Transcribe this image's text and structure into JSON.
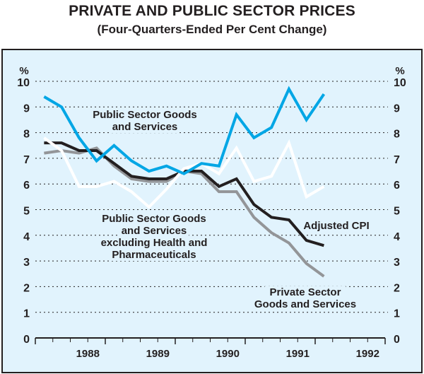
{
  "chart_data": {
    "type": "line",
    "title": "PRIVATE AND PUBLIC SECTOR PRICES",
    "subtitle": "(Four-Quarters-Ended Per Cent Change)",
    "xlabel": "",
    "ylabel": "%",
    "ylabel_right": "%",
    "ylim": [
      0,
      10
    ],
    "yticks": [
      0,
      1,
      2,
      3,
      4,
      5,
      6,
      7,
      8,
      9,
      10
    ],
    "x_tick_labels": [
      "1988",
      "1989",
      "1990",
      "1991",
      "1992"
    ],
    "x_start": "1987 Q4",
    "x_quarters_total": 20,
    "grid": true,
    "x": [
      "1988 Q1",
      "1988 Q2",
      "1988 Q3",
      "1988 Q4",
      "1989 Q1",
      "1989 Q2",
      "1989 Q3",
      "1989 Q4",
      "1990 Q1",
      "1990 Q2",
      "1990 Q3",
      "1990 Q4",
      "1991 Q1",
      "1991 Q2",
      "1991 Q3",
      "1991 Q4",
      "1992 Q1"
    ],
    "series": [
      {
        "name": "Public Sector Goods and Services",
        "label_lines": [
          "Public Sector Goods",
          "and Services"
        ],
        "color": "#00a6e5",
        "values": [
          9.4,
          9.0,
          7.8,
          6.9,
          7.5,
          6.9,
          6.5,
          6.7,
          6.4,
          6.8,
          6.7,
          8.7,
          7.8,
          8.2,
          9.7,
          8.5,
          9.5
        ]
      },
      {
        "name": "Public Sector Goods and Services excluding Health and Pharmaceuticals",
        "label_lines": [
          "Public Sector Goods",
          "and Services",
          "excluding Health and",
          "Pharmaceuticals"
        ],
        "color": "#ffffff",
        "values": [
          7.8,
          7.3,
          5.9,
          5.9,
          6.1,
          5.7,
          5.1,
          5.8,
          6.6,
          6.8,
          6.4,
          7.4,
          6.1,
          6.3,
          7.6,
          5.5,
          5.9
        ]
      },
      {
        "name": "Private Sector Goods and Services",
        "label_lines": [
          "Private Sector",
          "Goods and Services"
        ],
        "color": "#939598",
        "values": [
          7.2,
          7.3,
          7.2,
          7.4,
          6.7,
          6.2,
          6.1,
          6.1,
          6.5,
          6.4,
          5.7,
          5.7,
          4.7,
          4.1,
          3.7,
          2.9,
          2.4
        ]
      },
      {
        "name": "Adjusted CPI",
        "label_lines": [
          "Adjusted CPI"
        ],
        "color": "#231f20",
        "values": [
          7.6,
          7.6,
          7.3,
          7.3,
          6.8,
          6.3,
          6.2,
          6.2,
          6.5,
          6.5,
          5.9,
          6.2,
          5.2,
          4.7,
          4.6,
          3.8,
          3.6
        ]
      }
    ]
  }
}
